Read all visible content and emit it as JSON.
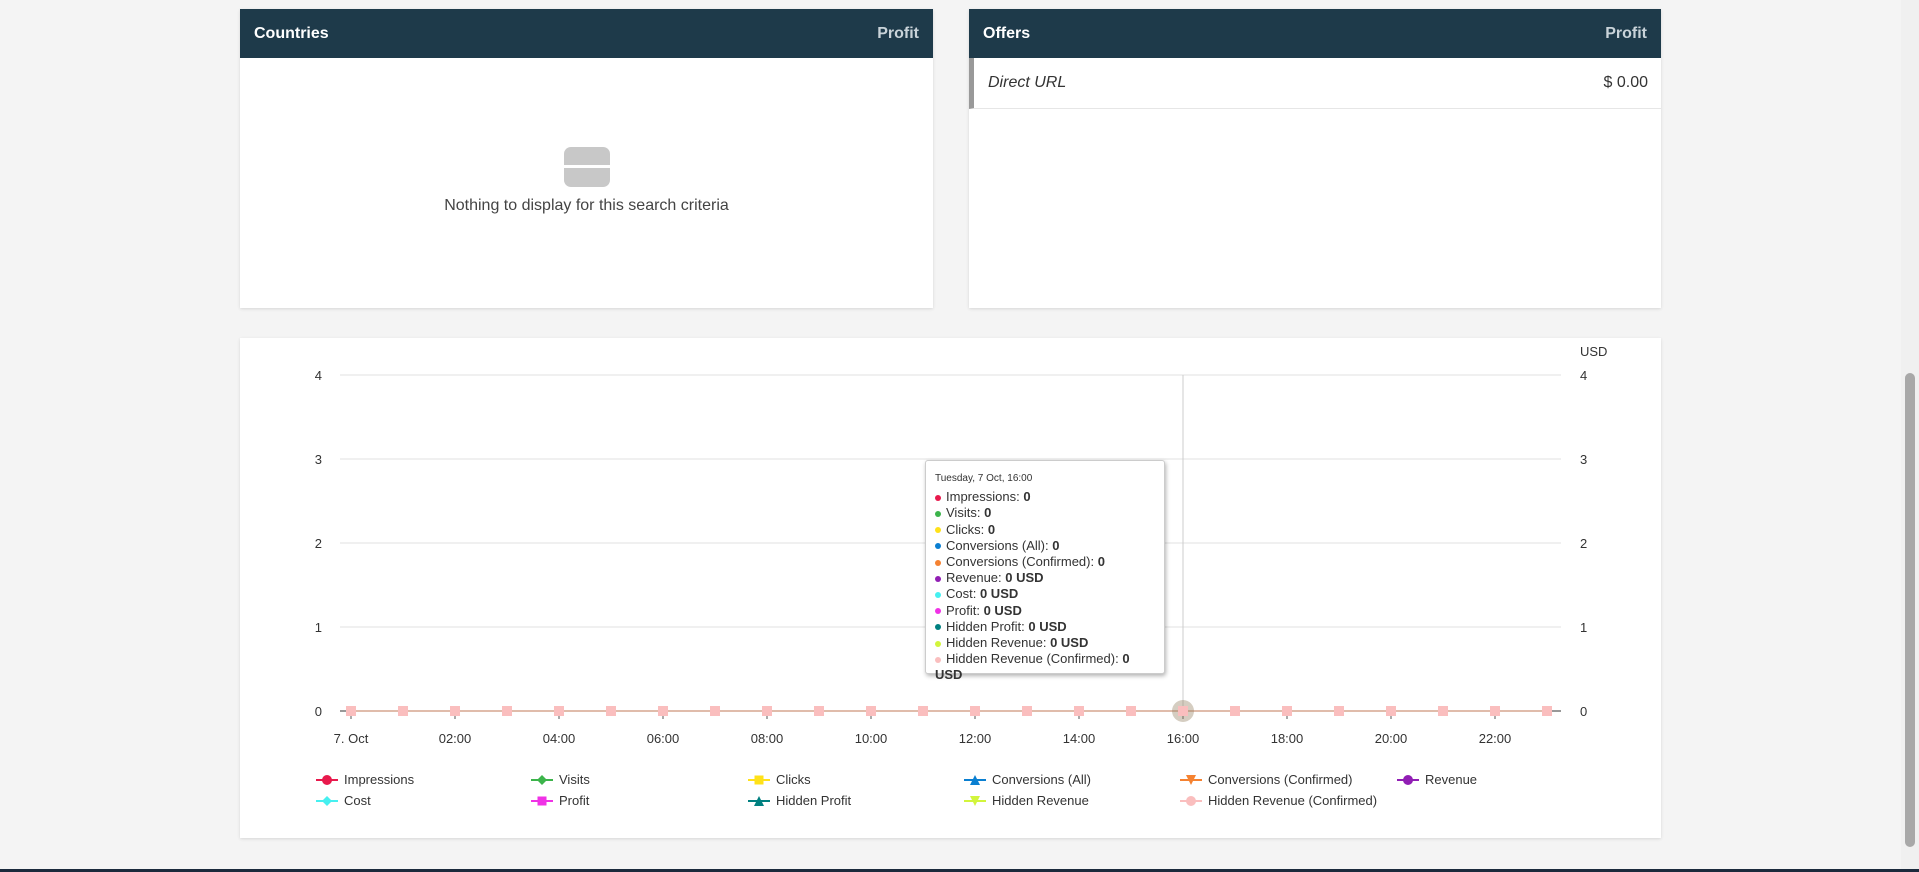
{
  "countries": {
    "title": "Countries",
    "col": "Profit",
    "empty": "Nothing to display for this search criteria"
  },
  "offers": {
    "title": "Offers",
    "col": "Profit",
    "rows": [
      {
        "name": "Direct URL",
        "profit": "$ 0.00"
      }
    ]
  },
  "chart_data": {
    "type": "line",
    "ylim": [
      0,
      4
    ],
    "yticks": [
      "0",
      "1",
      "2",
      "3",
      "4"
    ],
    "y2label": "USD",
    "y2ticks": [
      "0",
      "1",
      "2",
      "3",
      "4"
    ],
    "xticks": [
      "7. Oct",
      "02:00",
      "04:00",
      "06:00",
      "08:00",
      "10:00",
      "12:00",
      "14:00",
      "16:00",
      "18:00",
      "20:00",
      "22:00"
    ],
    "hours": 24,
    "values": [
      0,
      0,
      0,
      0,
      0,
      0,
      0,
      0,
      0,
      0,
      0,
      0,
      0,
      0,
      0,
      0,
      0,
      0,
      0,
      0,
      0,
      0,
      0,
      0
    ],
    "hover_index": 16,
    "series": [
      {
        "name": "Impressions",
        "color": "#e8194c",
        "marker": "circle"
      },
      {
        "name": "Visits",
        "color": "#3cb44b",
        "marker": "diamond"
      },
      {
        "name": "Clicks",
        "color": "#ffe119",
        "marker": "square"
      },
      {
        "name": "Conversions (All)",
        "color": "#0a7fd1",
        "marker": "triangle"
      },
      {
        "name": "Conversions (Confirmed)",
        "color": "#f58231",
        "marker": "triangle-down"
      },
      {
        "name": "Revenue",
        "color": "#911eb4",
        "marker": "circle"
      },
      {
        "name": "Cost",
        "color": "#46f0f0",
        "marker": "diamond"
      },
      {
        "name": "Profit",
        "color": "#f032e6",
        "marker": "square"
      },
      {
        "name": "Hidden Profit",
        "color": "#008080",
        "marker": "triangle"
      },
      {
        "name": "Hidden Revenue",
        "color": "#d2f53c",
        "marker": "triangle-down"
      },
      {
        "name": "Hidden Revenue (Confirmed)",
        "color": "#fabebe",
        "marker": "circle"
      }
    ]
  },
  "tooltip": {
    "header": "Tuesday, 7 Oct, 16:00",
    "items": [
      {
        "label": "Impressions: ",
        "value": "0"
      },
      {
        "label": "Visits: ",
        "value": "0"
      },
      {
        "label": "Clicks: ",
        "value": "0"
      },
      {
        "label": "Conversions (All): ",
        "value": "0"
      },
      {
        "label": "Conversions (Confirmed): ",
        "value": "0"
      },
      {
        "label": "Revenue: ",
        "value": "0 USD"
      },
      {
        "label": "Cost: ",
        "value": "0 USD"
      },
      {
        "label": "Profit: ",
        "value": "0 USD"
      },
      {
        "label": "Hidden Profit: ",
        "value": "0 USD"
      },
      {
        "label": "Hidden Revenue: ",
        "value": "0 USD"
      },
      {
        "label": "Hidden Revenue (Confirmed): ",
        "value": "0 USD"
      }
    ]
  }
}
